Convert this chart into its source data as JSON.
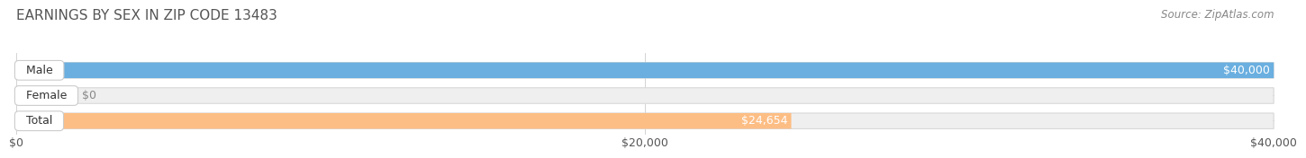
{
  "title": "EARNINGS BY SEX IN ZIP CODE 13483",
  "source": "Source: ZipAtlas.com",
  "categories": [
    "Male",
    "Female",
    "Total"
  ],
  "values": [
    40000,
    0,
    24654
  ],
  "bar_colors": [
    "#6aafe0",
    "#f4a0b5",
    "#fdbe85"
  ],
  "bar_bg_color": "#efefef",
  "bar_border_color": "#d8d8d8",
  "xlim": [
    0,
    40000
  ],
  "xticks": [
    0,
    20000,
    40000
  ],
  "xtick_labels": [
    "$0",
    "$20,000",
    "$40,000"
  ],
  "bar_labels": [
    "$40,000",
    "$0",
    "$24,654"
  ],
  "title_fontsize": 11,
  "source_fontsize": 8.5,
  "tick_fontsize": 9,
  "bar_label_fontsize": 9,
  "category_fontsize": 9,
  "background_color": "#ffffff",
  "bar_height": 0.62,
  "female_small_value": 1600
}
